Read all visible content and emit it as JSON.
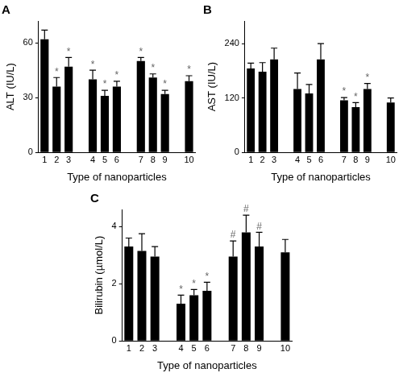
{
  "chart_data": [
    {
      "type": "bar",
      "title": "A",
      "x_label": "Type of nanoparticles",
      "y_label": "ALT (IU/L)",
      "categories": [
        "1",
        "2",
        "3",
        null,
        "4",
        "5",
        "6",
        null,
        "7",
        "8",
        "9",
        null,
        "10"
      ],
      "values": [
        62,
        36,
        47,
        null,
        40,
        31,
        36,
        null,
        50,
        41,
        32,
        null,
        39
      ],
      "errors": [
        5,
        5,
        5,
        null,
        5,
        3,
        3,
        null,
        2,
        2,
        2,
        null,
        3
      ],
      "annotations": [
        null,
        "*",
        "*",
        null,
        "*",
        "*",
        "*",
        null,
        "*",
        "*",
        "*",
        null,
        "*"
      ],
      "color": "#000000",
      "ylim": [
        0,
        72
      ],
      "yticks": [
        0,
        30,
        60
      ],
      "grid": false
    },
    {
      "type": "bar",
      "title": "B",
      "x_label": "Type of nanoparticles",
      "y_label": "AST (IU/L)",
      "categories": [
        "1",
        "2",
        "3",
        null,
        "4",
        "5",
        "6",
        null,
        "7",
        "8",
        "9",
        null,
        "10"
      ],
      "values": [
        185,
        178,
        205,
        null,
        140,
        130,
        205,
        null,
        115,
        100,
        140,
        null,
        110
      ],
      "errors": [
        12,
        20,
        25,
        null,
        35,
        20,
        35,
        null,
        6,
        10,
        12,
        null,
        10
      ],
      "annotations": [
        null,
        null,
        null,
        null,
        null,
        null,
        null,
        null,
        "*",
        "*",
        "*",
        null,
        null
      ],
      "color": "#000000",
      "ylim": [
        0,
        290
      ],
      "yticks": [
        0,
        120,
        240
      ],
      "grid": false
    },
    {
      "type": "bar",
      "title": "C",
      "x_label": "Type of nanoparticles",
      "y_label": "Bilirubin (µmol/L)",
      "categories": [
        "1",
        "2",
        "3",
        null,
        "4",
        "5",
        "6",
        null,
        "7",
        "8",
        "9",
        null,
        "10"
      ],
      "values": [
        3.3,
        3.15,
        2.95,
        null,
        1.3,
        1.6,
        1.75,
        null,
        2.95,
        3.8,
        3.3,
        null,
        3.1
      ],
      "errors": [
        0.3,
        0.6,
        0.35,
        null,
        0.3,
        0.2,
        0.3,
        null,
        0.55,
        0.6,
        0.5,
        null,
        0.45
      ],
      "annotations": [
        null,
        null,
        null,
        null,
        "*",
        "*",
        "*",
        null,
        "#",
        "#",
        "#",
        null,
        null
      ],
      "color": "#000000",
      "ylim": [
        0,
        4.6
      ],
      "yticks": [
        0,
        2,
        4
      ],
      "grid": false
    }
  ]
}
